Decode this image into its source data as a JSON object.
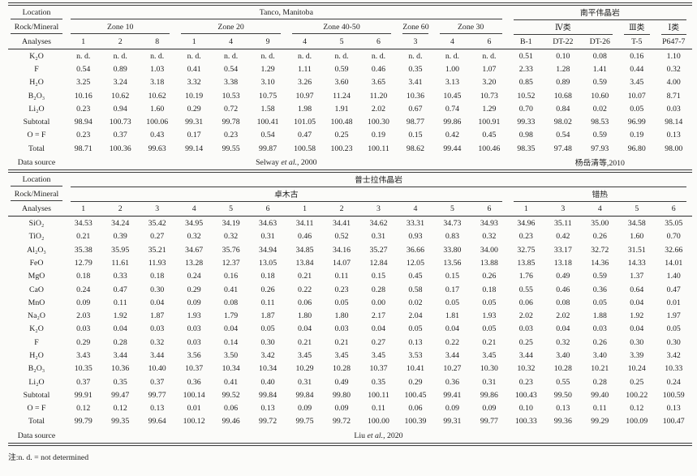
{
  "footnote": "注:n. d. = not determined",
  "header_labels": {
    "location": "Location",
    "rock_mineral": "Rock/Mineral",
    "analyses": "Analyses",
    "data_source": "Data source"
  },
  "sections": [
    {
      "id": "section-tanco-nanping",
      "location_groups": [
        {
          "label": "Tanco, Manitoba",
          "span": 12
        },
        {
          "label": "南平伟晶岩",
          "span": 5
        }
      ],
      "rock_groups": [
        {
          "label": "Zone 10",
          "span": 3
        },
        {
          "label": "Zone 20",
          "span": 3
        },
        {
          "label": "Zone 40-50",
          "span": 3
        },
        {
          "label": "Zone 60",
          "span": 1
        },
        {
          "label": "Zone 30",
          "span": 2
        },
        {
          "label": "Ⅳ类",
          "span": 3
        },
        {
          "label": "Ⅲ类",
          "span": 1
        },
        {
          "label": "Ⅰ类",
          "span": 1
        }
      ],
      "analyses": [
        "1",
        "2",
        "8",
        "1",
        "4",
        "9",
        "4",
        "5",
        "6",
        "3",
        "4",
        "6",
        "B-1",
        "DT-22",
        "DT-26",
        "T-5",
        "P647-7"
      ],
      "rows": [
        {
          "label": "K₂O",
          "values": [
            "n. d.",
            "n. d.",
            "n. d.",
            "n. d.",
            "n. d.",
            "n. d.",
            "n. d.",
            "n. d.",
            "n. d.",
            "n. d.",
            "n. d.",
            "n. d.",
            "0.51",
            "0.10",
            "0.08",
            "0.16",
            "1.10"
          ]
        },
        {
          "label": "F",
          "values": [
            "0.54",
            "0.89",
            "1.03",
            "0.41",
            "0.54",
            "1.29",
            "1.11",
            "0.59",
            "0.46",
            "0.35",
            "1.00",
            "1.07",
            "2.33",
            "1.28",
            "1.41",
            "0.44",
            "0.32"
          ]
        },
        {
          "label": "H₂O",
          "values": [
            "3.25",
            "3.24",
            "3.18",
            "3.32",
            "3.38",
            "3.10",
            "3.26",
            "3.60",
            "3.65",
            "3.41",
            "3.13",
            "3.20",
            "0.85",
            "0.89",
            "0.59",
            "3.45",
            "4.00"
          ]
        },
        {
          "label": "B₂O₃",
          "values": [
            "10.16",
            "10.62",
            "10.62",
            "10.19",
            "10.53",
            "10.75",
            "10.97",
            "11.24",
            "11.20",
            "10.36",
            "10.45",
            "10.73",
            "10.52",
            "10.68",
            "10.60",
            "10.07",
            "8.71"
          ]
        },
        {
          "label": "Li₂O",
          "values": [
            "0.23",
            "0.94",
            "1.60",
            "0.29",
            "0.72",
            "1.58",
            "1.98",
            "1.91",
            "2.02",
            "0.67",
            "0.74",
            "1.29",
            "0.70",
            "0.84",
            "0.02",
            "0.05",
            "0.03"
          ]
        },
        {
          "label": "Subtotal",
          "values": [
            "98.94",
            "100.73",
            "100.06",
            "99.31",
            "99.78",
            "100.41",
            "101.05",
            "100.48",
            "100.30",
            "98.77",
            "99.86",
            "100.91",
            "99.33",
            "98.02",
            "98.53",
            "96.99",
            "98.14"
          ]
        },
        {
          "label": "O = F",
          "values": [
            "0.23",
            "0.37",
            "0.43",
            "0.17",
            "0.23",
            "0.54",
            "0.47",
            "0.25",
            "0.19",
            "0.15",
            "0.42",
            "0.45",
            "0.98",
            "0.54",
            "0.59",
            "0.19",
            "0.13"
          ]
        },
        {
          "label": "Total",
          "values": [
            "98.71",
            "100.36",
            "99.63",
            "99.14",
            "99.55",
            "99.87",
            "100.58",
            "100.23",
            "100.11",
            "98.62",
            "99.44",
            "100.46",
            "98.35",
            "97.48",
            "97.93",
            "96.80",
            "98.00"
          ]
        }
      ],
      "sources": [
        {
          "pre": "Selway ",
          "italic": "et al.",
          "post": ", 2000",
          "span": 12
        },
        {
          "pre": "杨岳清等,2010",
          "italic": "",
          "post": "",
          "span": 5
        }
      ]
    },
    {
      "id": "section-pusila",
      "location_groups": [
        {
          "label": "普士拉伟晶岩",
          "span": 17
        }
      ],
      "rock_groups": [
        {
          "label": "卓木古",
          "span": 12
        },
        {
          "label": "错热",
          "span": 5
        }
      ],
      "analyses": [
        "1",
        "2",
        "3",
        "4",
        "5",
        "6",
        "1",
        "2",
        "3",
        "4",
        "5",
        "6",
        "1",
        "3",
        "4",
        "5",
        "6"
      ],
      "rows": [
        {
          "label": "SiO₂",
          "values": [
            "34.53",
            "34.24",
            "35.42",
            "34.95",
            "34.19",
            "34.63",
            "34.11",
            "34.41",
            "34.62",
            "33.31",
            "34.73",
            "34.93",
            "34.96",
            "35.11",
            "35.00",
            "34.58",
            "35.05"
          ]
        },
        {
          "label": "TiO₂",
          "values": [
            "0.21",
            "0.39",
            "0.27",
            "0.32",
            "0.32",
            "0.31",
            "0.46",
            "0.52",
            "0.31",
            "0.93",
            "0.83",
            "0.32",
            "0.23",
            "0.42",
            "0.26",
            "1.60",
            "0.70"
          ]
        },
        {
          "label": "Al₂O₃",
          "values": [
            "35.38",
            "35.95",
            "35.21",
            "34.67",
            "35.76",
            "34.94",
            "34.85",
            "34.16",
            "35.27",
            "36.66",
            "33.80",
            "34.00",
            "32.75",
            "33.17",
            "32.72",
            "31.51",
            "32.66"
          ]
        },
        {
          "label": "FeO",
          "values": [
            "12.79",
            "11.61",
            "11.93",
            "13.28",
            "12.37",
            "13.05",
            "13.84",
            "14.07",
            "12.84",
            "12.05",
            "13.56",
            "13.88",
            "13.85",
            "13.18",
            "14.36",
            "14.33",
            "14.01"
          ]
        },
        {
          "label": "MgO",
          "values": [
            "0.18",
            "0.33",
            "0.18",
            "0.24",
            "0.16",
            "0.18",
            "0.21",
            "0.11",
            "0.15",
            "0.45",
            "0.15",
            "0.26",
            "1.76",
            "0.49",
            "0.59",
            "1.37",
            "1.40"
          ]
        },
        {
          "label": "CaO",
          "values": [
            "0.24",
            "0.47",
            "0.30",
            "0.29",
            "0.41",
            "0.26",
            "0.22",
            "0.23",
            "0.28",
            "0.58",
            "0.17",
            "0.18",
            "0.55",
            "0.46",
            "0.36",
            "0.64",
            "0.47"
          ]
        },
        {
          "label": "MnO",
          "values": [
            "0.09",
            "0.11",
            "0.04",
            "0.09",
            "0.08",
            "0.11",
            "0.06",
            "0.05",
            "0.00",
            "0.02",
            "0.05",
            "0.05",
            "0.06",
            "0.08",
            "0.05",
            "0.04",
            "0.01"
          ]
        },
        {
          "label": "Na₂O",
          "values": [
            "2.03",
            "1.92",
            "1.87",
            "1.93",
            "1.79",
            "1.87",
            "1.80",
            "1.80",
            "2.17",
            "2.04",
            "1.81",
            "1.93",
            "2.02",
            "2.02",
            "1.88",
            "1.92",
            "1.97"
          ]
        },
        {
          "label": "K₂O",
          "values": [
            "0.03",
            "0.04",
            "0.03",
            "0.03",
            "0.04",
            "0.05",
            "0.04",
            "0.03",
            "0.04",
            "0.05",
            "0.04",
            "0.05",
            "0.03",
            "0.04",
            "0.03",
            "0.04",
            "0.05"
          ]
        },
        {
          "label": "F",
          "values": [
            "0.29",
            "0.28",
            "0.32",
            "0.03",
            "0.14",
            "0.30",
            "0.21",
            "0.21",
            "0.27",
            "0.13",
            "0.22",
            "0.21",
            "0.25",
            "0.32",
            "0.26",
            "0.30",
            "0.30"
          ]
        },
        {
          "label": "H₂O",
          "values": [
            "3.43",
            "3.44",
            "3.44",
            "3.56",
            "3.50",
            "3.42",
            "3.45",
            "3.45",
            "3.45",
            "3.53",
            "3.44",
            "3.45",
            "3.44",
            "3.40",
            "3.40",
            "3.39",
            "3.42"
          ]
        },
        {
          "label": "B₂O₃",
          "values": [
            "10.35",
            "10.36",
            "10.40",
            "10.37",
            "10.34",
            "10.34",
            "10.29",
            "10.28",
            "10.37",
            "10.41",
            "10.27",
            "10.30",
            "10.32",
            "10.28",
            "10.21",
            "10.24",
            "10.33"
          ]
        },
        {
          "label": "Li₂O",
          "values": [
            "0.37",
            "0.35",
            "0.37",
            "0.36",
            "0.41",
            "0.40",
            "0.31",
            "0.49",
            "0.35",
            "0.29",
            "0.36",
            "0.31",
            "0.23",
            "0.55",
            "0.28",
            "0.25",
            "0.24"
          ]
        },
        {
          "label": "Subtotal",
          "values": [
            "99.91",
            "99.47",
            "99.77",
            "100.14",
            "99.52",
            "99.84",
            "99.84",
            "99.80",
            "100.11",
            "100.45",
            "99.41",
            "99.86",
            "100.43",
            "99.50",
            "99.40",
            "100.22",
            "100.59"
          ]
        },
        {
          "label": "O = F",
          "values": [
            "0.12",
            "0.12",
            "0.13",
            "0.01",
            "0.06",
            "0.13",
            "0.09",
            "0.09",
            "0.11",
            "0.06",
            "0.09",
            "0.09",
            "0.10",
            "0.13",
            "0.11",
            "0.12",
            "0.13"
          ]
        },
        {
          "label": "Total",
          "values": [
            "99.79",
            "99.35",
            "99.64",
            "100.12",
            "99.46",
            "99.72",
            "99.75",
            "99.72",
            "100.00",
            "100.39",
            "99.31",
            "99.77",
            "100.33",
            "99.36",
            "99.29",
            "100.09",
            "100.47"
          ]
        }
      ],
      "sources": [
        {
          "pre": "Liu ",
          "italic": "et al.",
          "post": ", 2020",
          "span": 17
        }
      ]
    }
  ]
}
